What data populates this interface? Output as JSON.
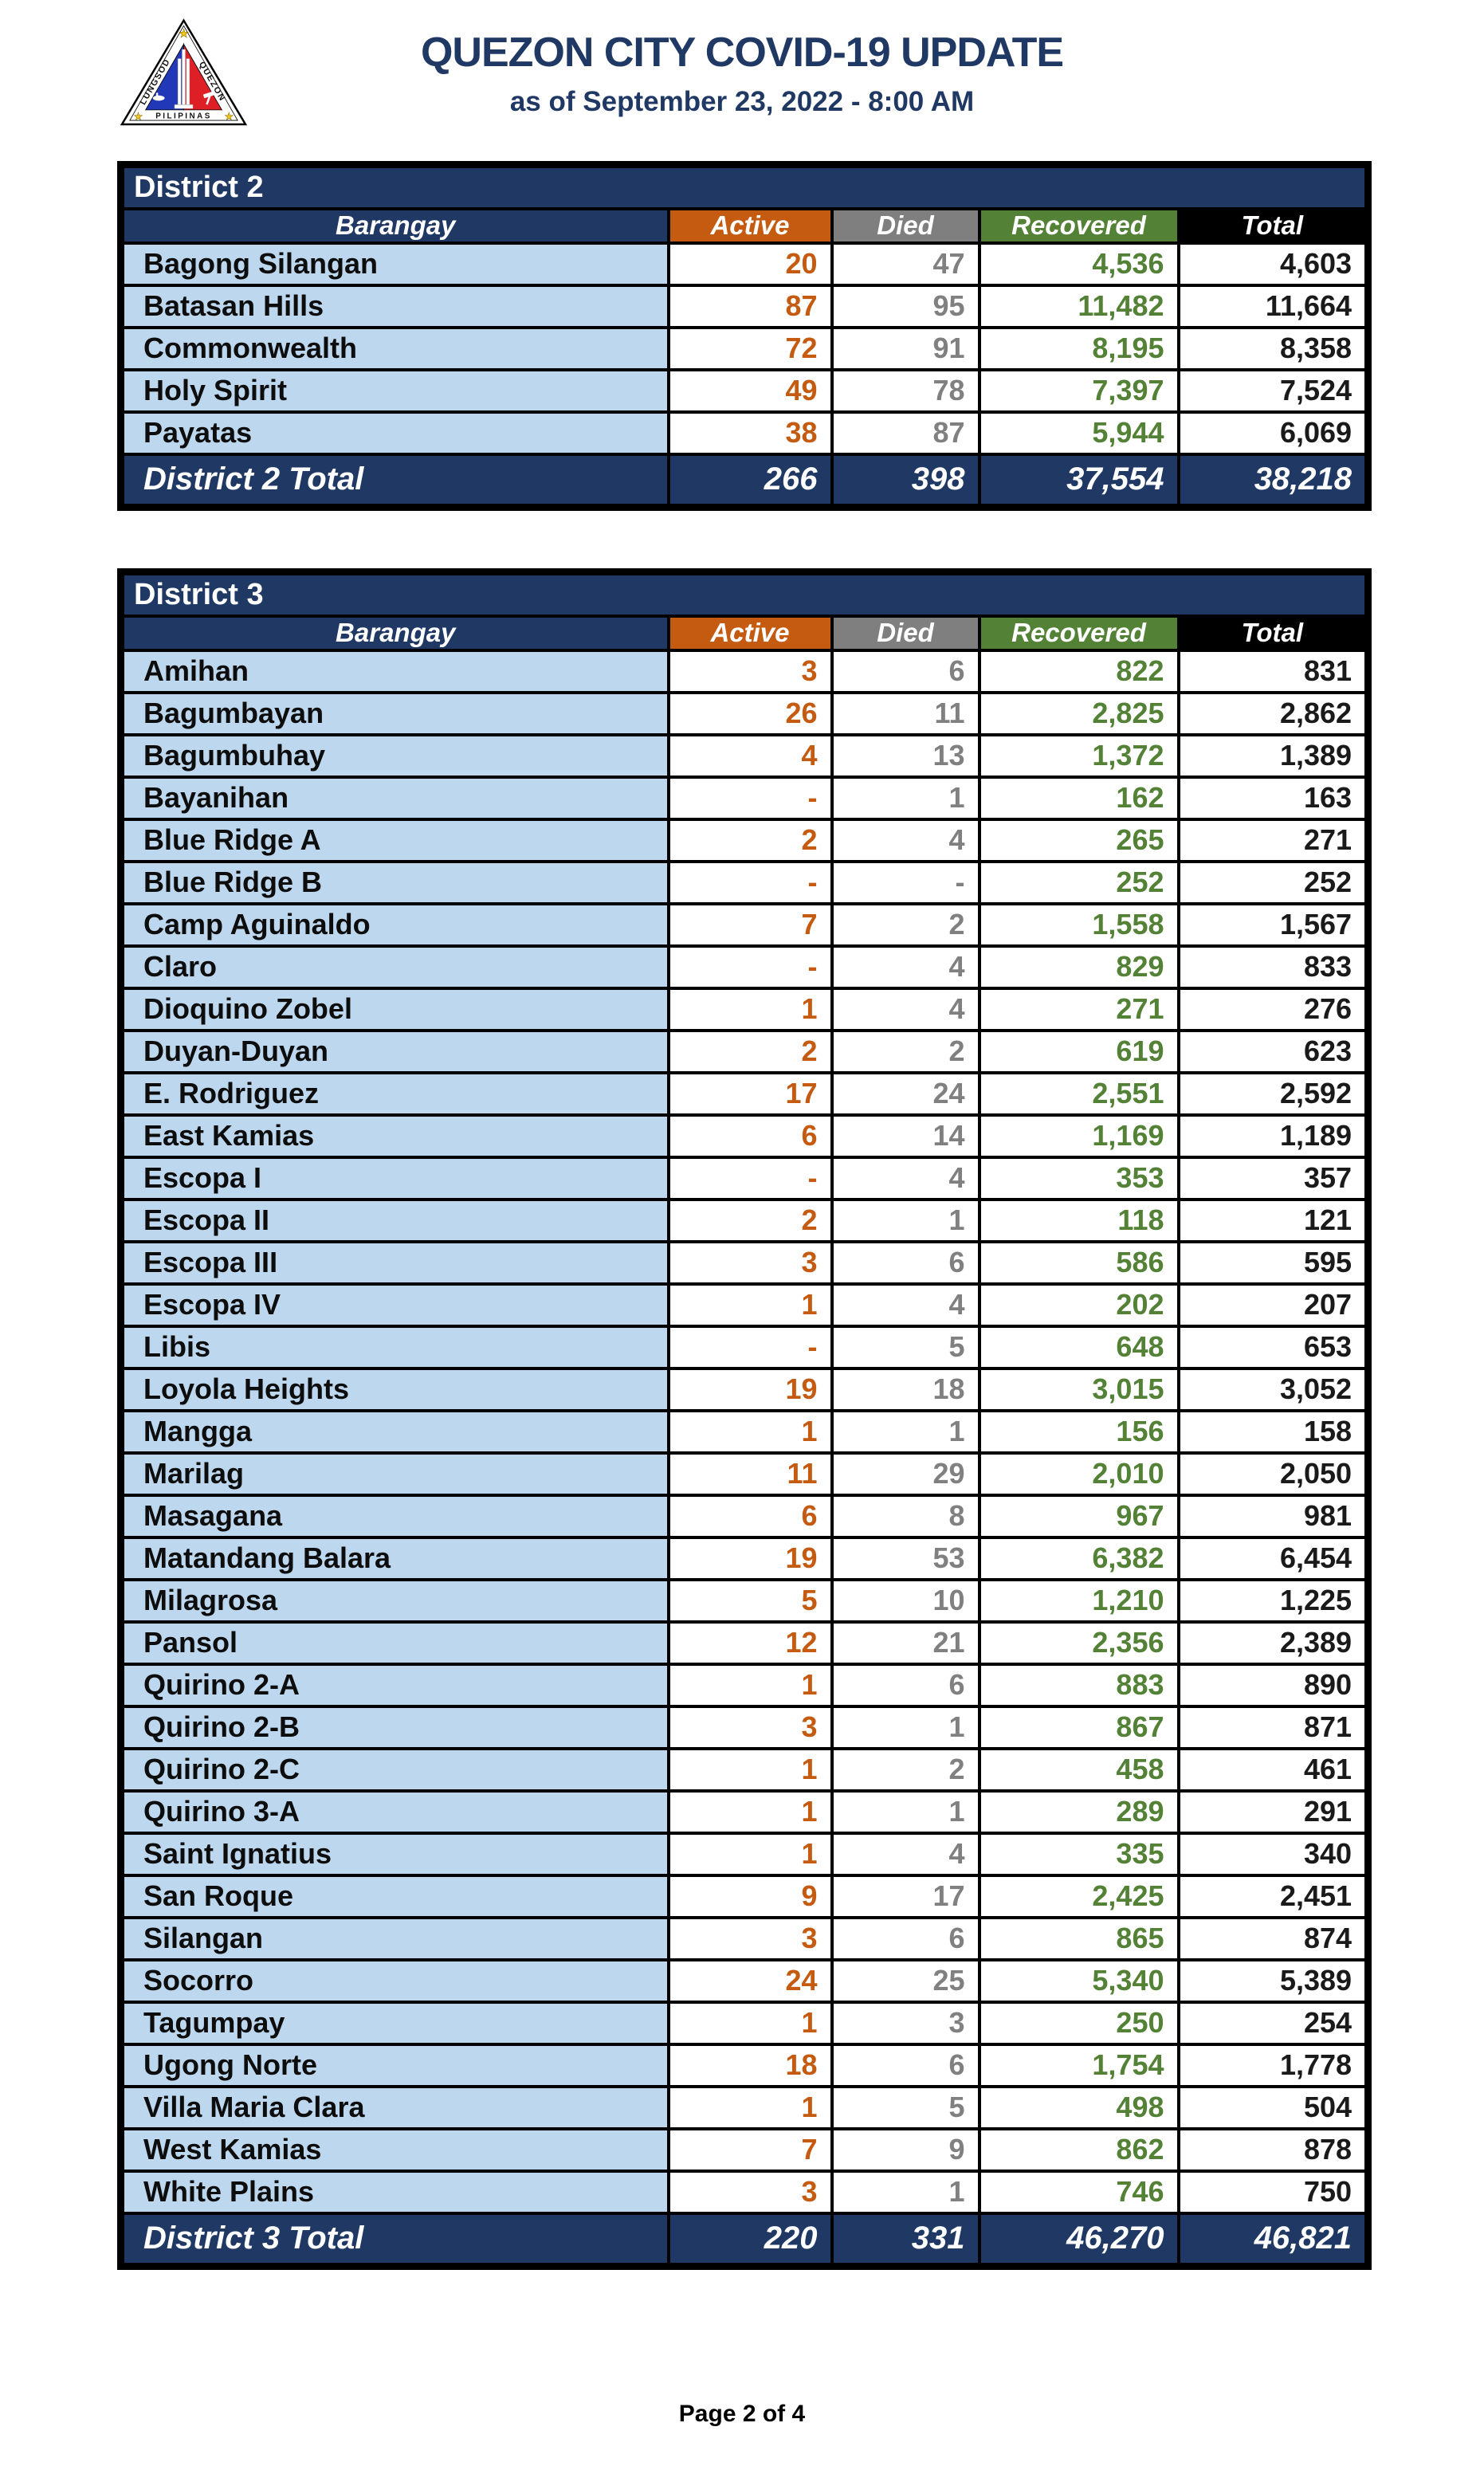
{
  "header": {
    "title": "QUEZON CITY COVID-19 UPDATE",
    "subtitle": "as of September 23, 2022 - 8:00 AM",
    "logo": {
      "left_text": "LUNGSOD",
      "right_text": "QUEZON",
      "bottom_text": "PILIPINAS"
    }
  },
  "colors": {
    "navy": "#1F3864",
    "orange": "#C55A11",
    "gray": "#7F7F7F",
    "green": "#538135",
    "black": "#000000",
    "light_blue": "#BDD7EE"
  },
  "columns": [
    "Barangay",
    "Active",
    "Died",
    "Recovered",
    "Total"
  ],
  "tables": [
    {
      "district": "District 2",
      "rows": [
        [
          "Bagong Silangan",
          "20",
          "47",
          "4,536",
          "4,603"
        ],
        [
          "Batasan Hills",
          "87",
          "95",
          "11,482",
          "11,664"
        ],
        [
          "Commonwealth",
          "72",
          "91",
          "8,195",
          "8,358"
        ],
        [
          "Holy Spirit",
          "49",
          "78",
          "7,397",
          "7,524"
        ],
        [
          "Payatas",
          "38",
          "87",
          "5,944",
          "6,069"
        ]
      ],
      "total": [
        "District 2 Total",
        "266",
        "398",
        "37,554",
        "38,218"
      ]
    },
    {
      "district": "District 3",
      "rows": [
        [
          "Amihan",
          "3",
          "6",
          "822",
          "831"
        ],
        [
          "Bagumbayan",
          "26",
          "11",
          "2,825",
          "2,862"
        ],
        [
          "Bagumbuhay",
          "4",
          "13",
          "1,372",
          "1,389"
        ],
        [
          "Bayanihan",
          "-",
          "1",
          "162",
          "163"
        ],
        [
          "Blue Ridge A",
          "2",
          "4",
          "265",
          "271"
        ],
        [
          "Blue Ridge B",
          "-",
          "-",
          "252",
          "252"
        ],
        [
          "Camp Aguinaldo",
          "7",
          "2",
          "1,558",
          "1,567"
        ],
        [
          "Claro",
          "-",
          "4",
          "829",
          "833"
        ],
        [
          "Dioquino Zobel",
          "1",
          "4",
          "271",
          "276"
        ],
        [
          "Duyan-Duyan",
          "2",
          "2",
          "619",
          "623"
        ],
        [
          "E. Rodriguez",
          "17",
          "24",
          "2,551",
          "2,592"
        ],
        [
          "East Kamias",
          "6",
          "14",
          "1,169",
          "1,189"
        ],
        [
          "Escopa I",
          "-",
          "4",
          "353",
          "357"
        ],
        [
          "Escopa II",
          "2",
          "1",
          "118",
          "121"
        ],
        [
          "Escopa III",
          "3",
          "6",
          "586",
          "595"
        ],
        [
          "Escopa IV",
          "1",
          "4",
          "202",
          "207"
        ],
        [
          "Libis",
          "-",
          "5",
          "648",
          "653"
        ],
        [
          "Loyola Heights",
          "19",
          "18",
          "3,015",
          "3,052"
        ],
        [
          "Mangga",
          "1",
          "1",
          "156",
          "158"
        ],
        [
          "Marilag",
          "11",
          "29",
          "2,010",
          "2,050"
        ],
        [
          "Masagana",
          "6",
          "8",
          "967",
          "981"
        ],
        [
          "Matandang Balara",
          "19",
          "53",
          "6,382",
          "6,454"
        ],
        [
          "Milagrosa",
          "5",
          "10",
          "1,210",
          "1,225"
        ],
        [
          "Pansol",
          "12",
          "21",
          "2,356",
          "2,389"
        ],
        [
          "Quirino 2-A",
          "1",
          "6",
          "883",
          "890"
        ],
        [
          "Quirino 2-B",
          "3",
          "1",
          "867",
          "871"
        ],
        [
          "Quirino 2-C",
          "1",
          "2",
          "458",
          "461"
        ],
        [
          "Quirino 3-A",
          "1",
          "1",
          "289",
          "291"
        ],
        [
          "Saint Ignatius",
          "1",
          "4",
          "335",
          "340"
        ],
        [
          "San Roque",
          "9",
          "17",
          "2,425",
          "2,451"
        ],
        [
          "Silangan",
          "3",
          "6",
          "865",
          "874"
        ],
        [
          "Socorro",
          "24",
          "25",
          "5,340",
          "5,389"
        ],
        [
          "Tagumpay",
          "1",
          "3",
          "250",
          "254"
        ],
        [
          "Ugong Norte",
          "18",
          "6",
          "1,754",
          "1,778"
        ],
        [
          "Villa Maria Clara",
          "1",
          "5",
          "498",
          "504"
        ],
        [
          "West Kamias",
          "7",
          "9",
          "862",
          "878"
        ],
        [
          "White Plains",
          "3",
          "1",
          "746",
          "750"
        ]
      ],
      "total": [
        "District 3 Total",
        "220",
        "331",
        "46,270",
        "46,821"
      ]
    }
  ],
  "footer": {
    "page_label": "Page 2 of 4"
  }
}
